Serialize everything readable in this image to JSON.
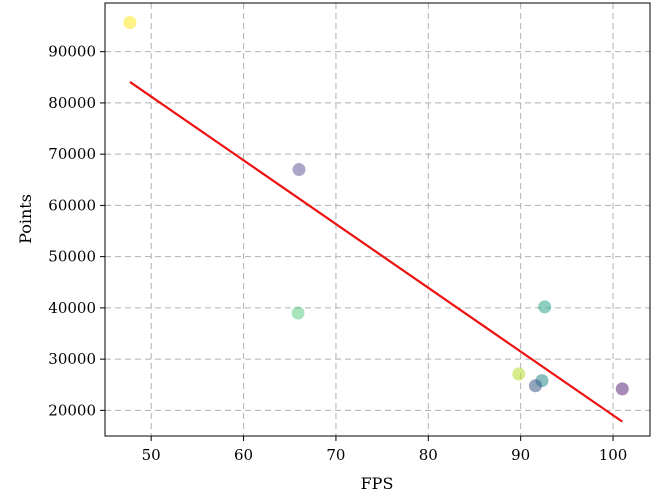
{
  "chart_data": {
    "type": "scatter",
    "xlabel": "FPS",
    "ylabel": "Points",
    "xlim": [
      45,
      104
    ],
    "ylim": [
      15000,
      99500
    ],
    "xticks": [
      50,
      60,
      70,
      80,
      90,
      100
    ],
    "yticks": [
      20000,
      30000,
      40000,
      50000,
      60000,
      70000,
      80000,
      90000
    ],
    "xtick_labels": [
      "50",
      "60",
      "70",
      "80",
      "90",
      "100"
    ],
    "ytick_labels": [
      "20000",
      "30000",
      "40000",
      "50000",
      "60000",
      "70000",
      "80000",
      "90000"
    ],
    "grid": true,
    "points": [
      {
        "x": 47.7,
        "y": 95700,
        "color": "#fde725"
      },
      {
        "x": 66.0,
        "y": 67000,
        "color": "#6a5d9b"
      },
      {
        "x": 65.9,
        "y": 39000,
        "color": "#5fcd85"
      },
      {
        "x": 92.6,
        "y": 40200,
        "color": "#2fa68c"
      },
      {
        "x": 89.8,
        "y": 27100,
        "color": "#b5dd2b"
      },
      {
        "x": 92.3,
        "y": 25800,
        "color": "#2a8b8d"
      },
      {
        "x": 91.6,
        "y": 24800,
        "color": "#3b5a8b"
      },
      {
        "x": 101.0,
        "y": 24200,
        "color": "#5b2a7e"
      }
    ],
    "trendline": {
      "x": [
        47.7,
        101.0
      ],
      "y": [
        84100,
        17800
      ],
      "color": "#ee1111"
    }
  }
}
